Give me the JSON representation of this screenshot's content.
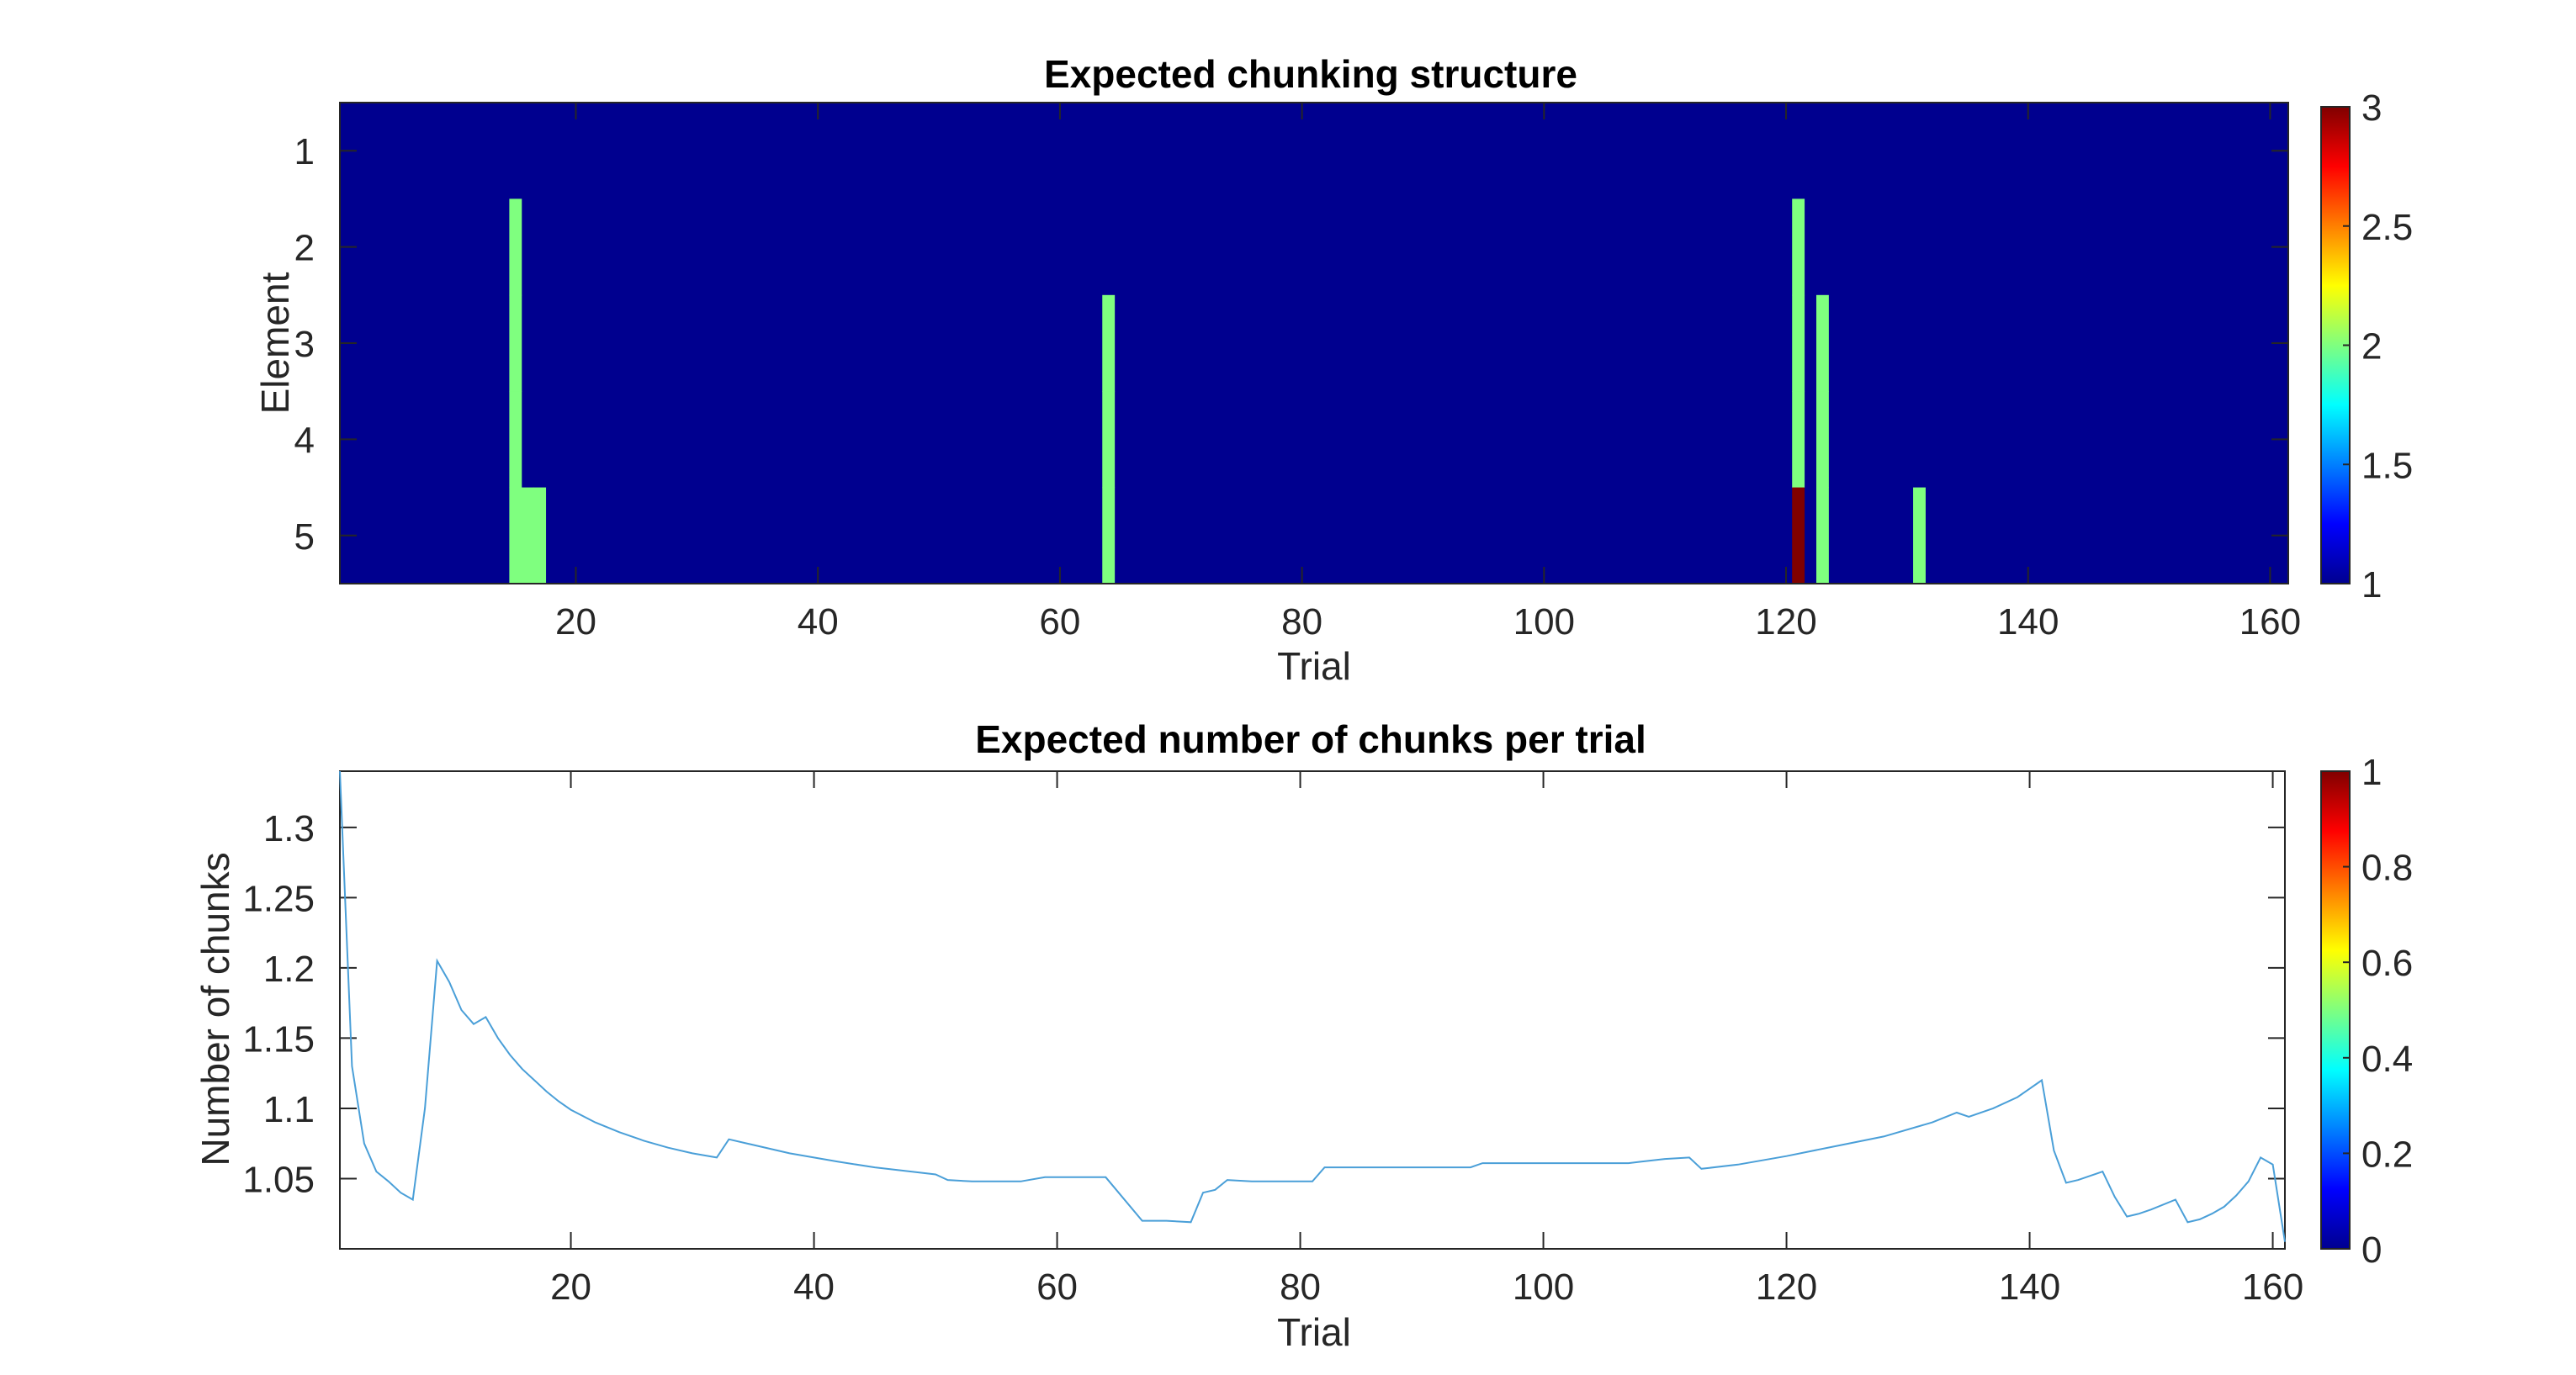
{
  "chart_data": [
    {
      "type": "heatmap",
      "title": "Expected chunking structure",
      "xlabel": "Trial",
      "ylabel": "Element",
      "xlim": [
        0.5,
        161.5
      ],
      "ylim": [
        0.5,
        5.5
      ],
      "xticks": [
        20,
        40,
        60,
        80,
        100,
        120,
        140,
        160
      ],
      "yticks": [
        1,
        2,
        3,
        4,
        5
      ],
      "background_value": 1,
      "colormap": "jet",
      "background_color": "#00008f",
      "cells": [
        {
          "x": 15,
          "rows": [
            2,
            3,
            4,
            5
          ],
          "value": 2
        },
        {
          "x": 16,
          "rows": [
            5
          ],
          "value": 2
        },
        {
          "x": 17,
          "rows": [
            5
          ],
          "value": 2
        },
        {
          "x": 64,
          "rows": [
            3,
            4,
            5
          ],
          "value": 2
        },
        {
          "x": 121,
          "rows": [
            2,
            3,
            4
          ],
          "value": 2
        },
        {
          "x": 121,
          "rows": [
            5
          ],
          "value": 3
        },
        {
          "x": 123,
          "rows": [
            3,
            4,
            5
          ],
          "value": 2
        },
        {
          "x": 131,
          "rows": [
            5
          ],
          "value": 2
        }
      ],
      "colorbar": {
        "range": [
          1,
          3
        ],
        "ticks": [
          "1",
          "1.5",
          "2",
          "2.5",
          "3"
        ]
      }
    },
    {
      "type": "line",
      "title": "Expected number of chunks per trial",
      "xlabel": "Trial",
      "ylabel": "Number of chunks",
      "xlim": [
        1,
        161
      ],
      "ylim": [
        1,
        1.34
      ],
      "xticks": [
        20,
        40,
        60,
        80,
        100,
        120,
        140,
        160
      ],
      "yticks": [
        "1.05",
        "1.1",
        "1.15",
        "1.2",
        "1.25",
        "1.3"
      ],
      "line_color": "#4a9fd8",
      "series": [
        {
          "x": [
            1,
            2,
            3,
            4,
            5,
            6,
            7,
            8,
            9,
            10,
            11,
            12,
            13,
            14,
            15,
            16,
            17,
            18,
            19,
            20,
            22,
            24,
            26,
            28,
            30,
            32,
            33,
            35,
            38,
            40,
            42,
            45,
            48,
            50,
            51,
            53,
            55,
            57,
            59,
            61,
            64,
            67,
            69,
            71,
            72,
            73,
            74,
            76,
            78,
            80,
            81,
            82,
            84,
            86,
            88,
            90,
            92,
            94,
            95,
            97,
            99,
            101,
            103,
            105,
            107,
            108,
            110,
            112,
            113,
            116,
            120,
            124,
            128,
            132,
            134,
            135,
            137,
            139,
            141,
            142,
            143,
            144,
            145,
            146,
            147,
            148,
            149,
            150,
            152,
            153,
            154,
            155,
            156,
            157,
            158,
            159,
            160,
            161
          ],
          "y": [
            1.34,
            1.13,
            1.075,
            1.055,
            1.048,
            1.04,
            1.035,
            1.1,
            1.205,
            1.19,
            1.17,
            1.16,
            1.165,
            1.15,
            1.138,
            1.128,
            1.12,
            1.112,
            1.105,
            1.099,
            1.09,
            1.083,
            1.077,
            1.072,
            1.068,
            1.065,
            1.078,
            1.074,
            1.068,
            1.065,
            1.062,
            1.058,
            1.055,
            1.053,
            1.049,
            1.048,
            1.048,
            1.048,
            1.051,
            1.051,
            1.051,
            1.02,
            1.02,
            1.019,
            1.04,
            1.042,
            1.049,
            1.048,
            1.048,
            1.048,
            1.048,
            1.058,
            1.058,
            1.058,
            1.058,
            1.058,
            1.058,
            1.058,
            1.061,
            1.061,
            1.061,
            1.061,
            1.061,
            1.061,
            1.061,
            1.062,
            1.064,
            1.065,
            1.057,
            1.06,
            1.066,
            1.073,
            1.08,
            1.09,
            1.097,
            1.094,
            1.1,
            1.108,
            1.12,
            1.07,
            1.047,
            1.049,
            1.052,
            1.055,
            1.037,
            1.023,
            1.025,
            1.028,
            1.035,
            1.019,
            1.021,
            1.025,
            1.03,
            1.038,
            1.048,
            1.065,
            1.06,
            1.005
          ]
        }
      ],
      "colorbar": {
        "range": [
          0,
          1
        ],
        "ticks": [
          "0",
          "0.2",
          "0.4",
          "0.6",
          "0.8",
          "1"
        ]
      }
    }
  ]
}
